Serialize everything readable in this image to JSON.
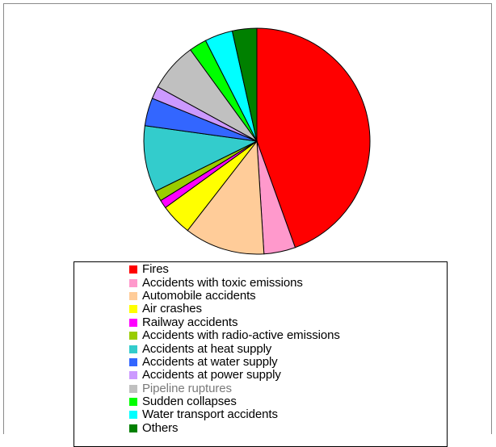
{
  "chart_data": {
    "type": "pie",
    "title": "",
    "slices": [
      {
        "label": "Fires",
        "value": 44.5,
        "color": "#ff0000"
      },
      {
        "label": "Accidents with toxic emissions",
        "value": 4.5,
        "color": "#ff99cc"
      },
      {
        "label": "Automobile accidents",
        "value": 11.5,
        "color": "#ffcc99"
      },
      {
        "label": "Air crashes",
        "value": 4.5,
        "color": "#ffff00"
      },
      {
        "label": "Railway accidents",
        "value": 1.2,
        "color": "#ff00ff"
      },
      {
        "label": "Accidents with radio-active emissions",
        "value": 1.5,
        "color": "#99cc00"
      },
      {
        "label": "Accidents at heat supply",
        "value": 9.5,
        "color": "#33cccc"
      },
      {
        "label": "Accidents at water supply",
        "value": 4.0,
        "color": "#3366ff"
      },
      {
        "label": "Accidents at power supply",
        "value": 1.8,
        "color": "#cc99ff"
      },
      {
        "label": "Pipeline ruptures",
        "value": 7.0,
        "color": "#c0c0c0"
      },
      {
        "label": "Sudden collapses",
        "value": 2.5,
        "color": "#00ff00"
      },
      {
        "label": "Water transport accidents",
        "value": 4.0,
        "color": "#00ffff"
      },
      {
        "label": "Others",
        "value": 3.5,
        "color": "#008000"
      }
    ],
    "start_angle": "12 o'clock",
    "direction": "clockwise",
    "legend_position": "bottom"
  }
}
